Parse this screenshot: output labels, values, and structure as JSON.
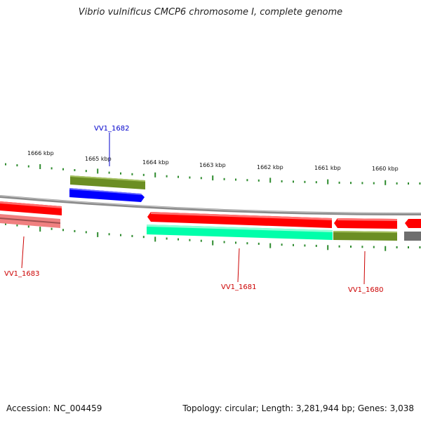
{
  "title": "Vibrio vulnificus CMCP6 chromosome I, complete genome",
  "accession": "Accession: NC_004459",
  "summary": "Topology: circular; Length: 3,281,944 bp; Genes: 3,038",
  "ticks": [
    {
      "label": "1666 kbp"
    },
    {
      "label": "1665 kbp"
    },
    {
      "label": "1664 kbp"
    },
    {
      "label": "1663 kbp"
    },
    {
      "label": "1662 kbp"
    },
    {
      "label": "1661 kbp"
    },
    {
      "label": "1660 kbp"
    }
  ],
  "gene_labels": {
    "vv1_1682": "VV1_1682",
    "vv1_1683": "VV1_1683",
    "vv1_1681": "VV1_1681",
    "vv1_1680": "VV1_1680"
  },
  "colors": {
    "forward_cds": "#ff0000",
    "reverse_cds": "#ff0000",
    "backbone": "#808080",
    "olive": "#6b8e23",
    "blue": "#0000ff",
    "aqua": "#00ffaa",
    "pink": "#f08080",
    "tick": "#2e8b2e",
    "label_red": "#cc0000",
    "label_blue": "#0000cc"
  }
}
